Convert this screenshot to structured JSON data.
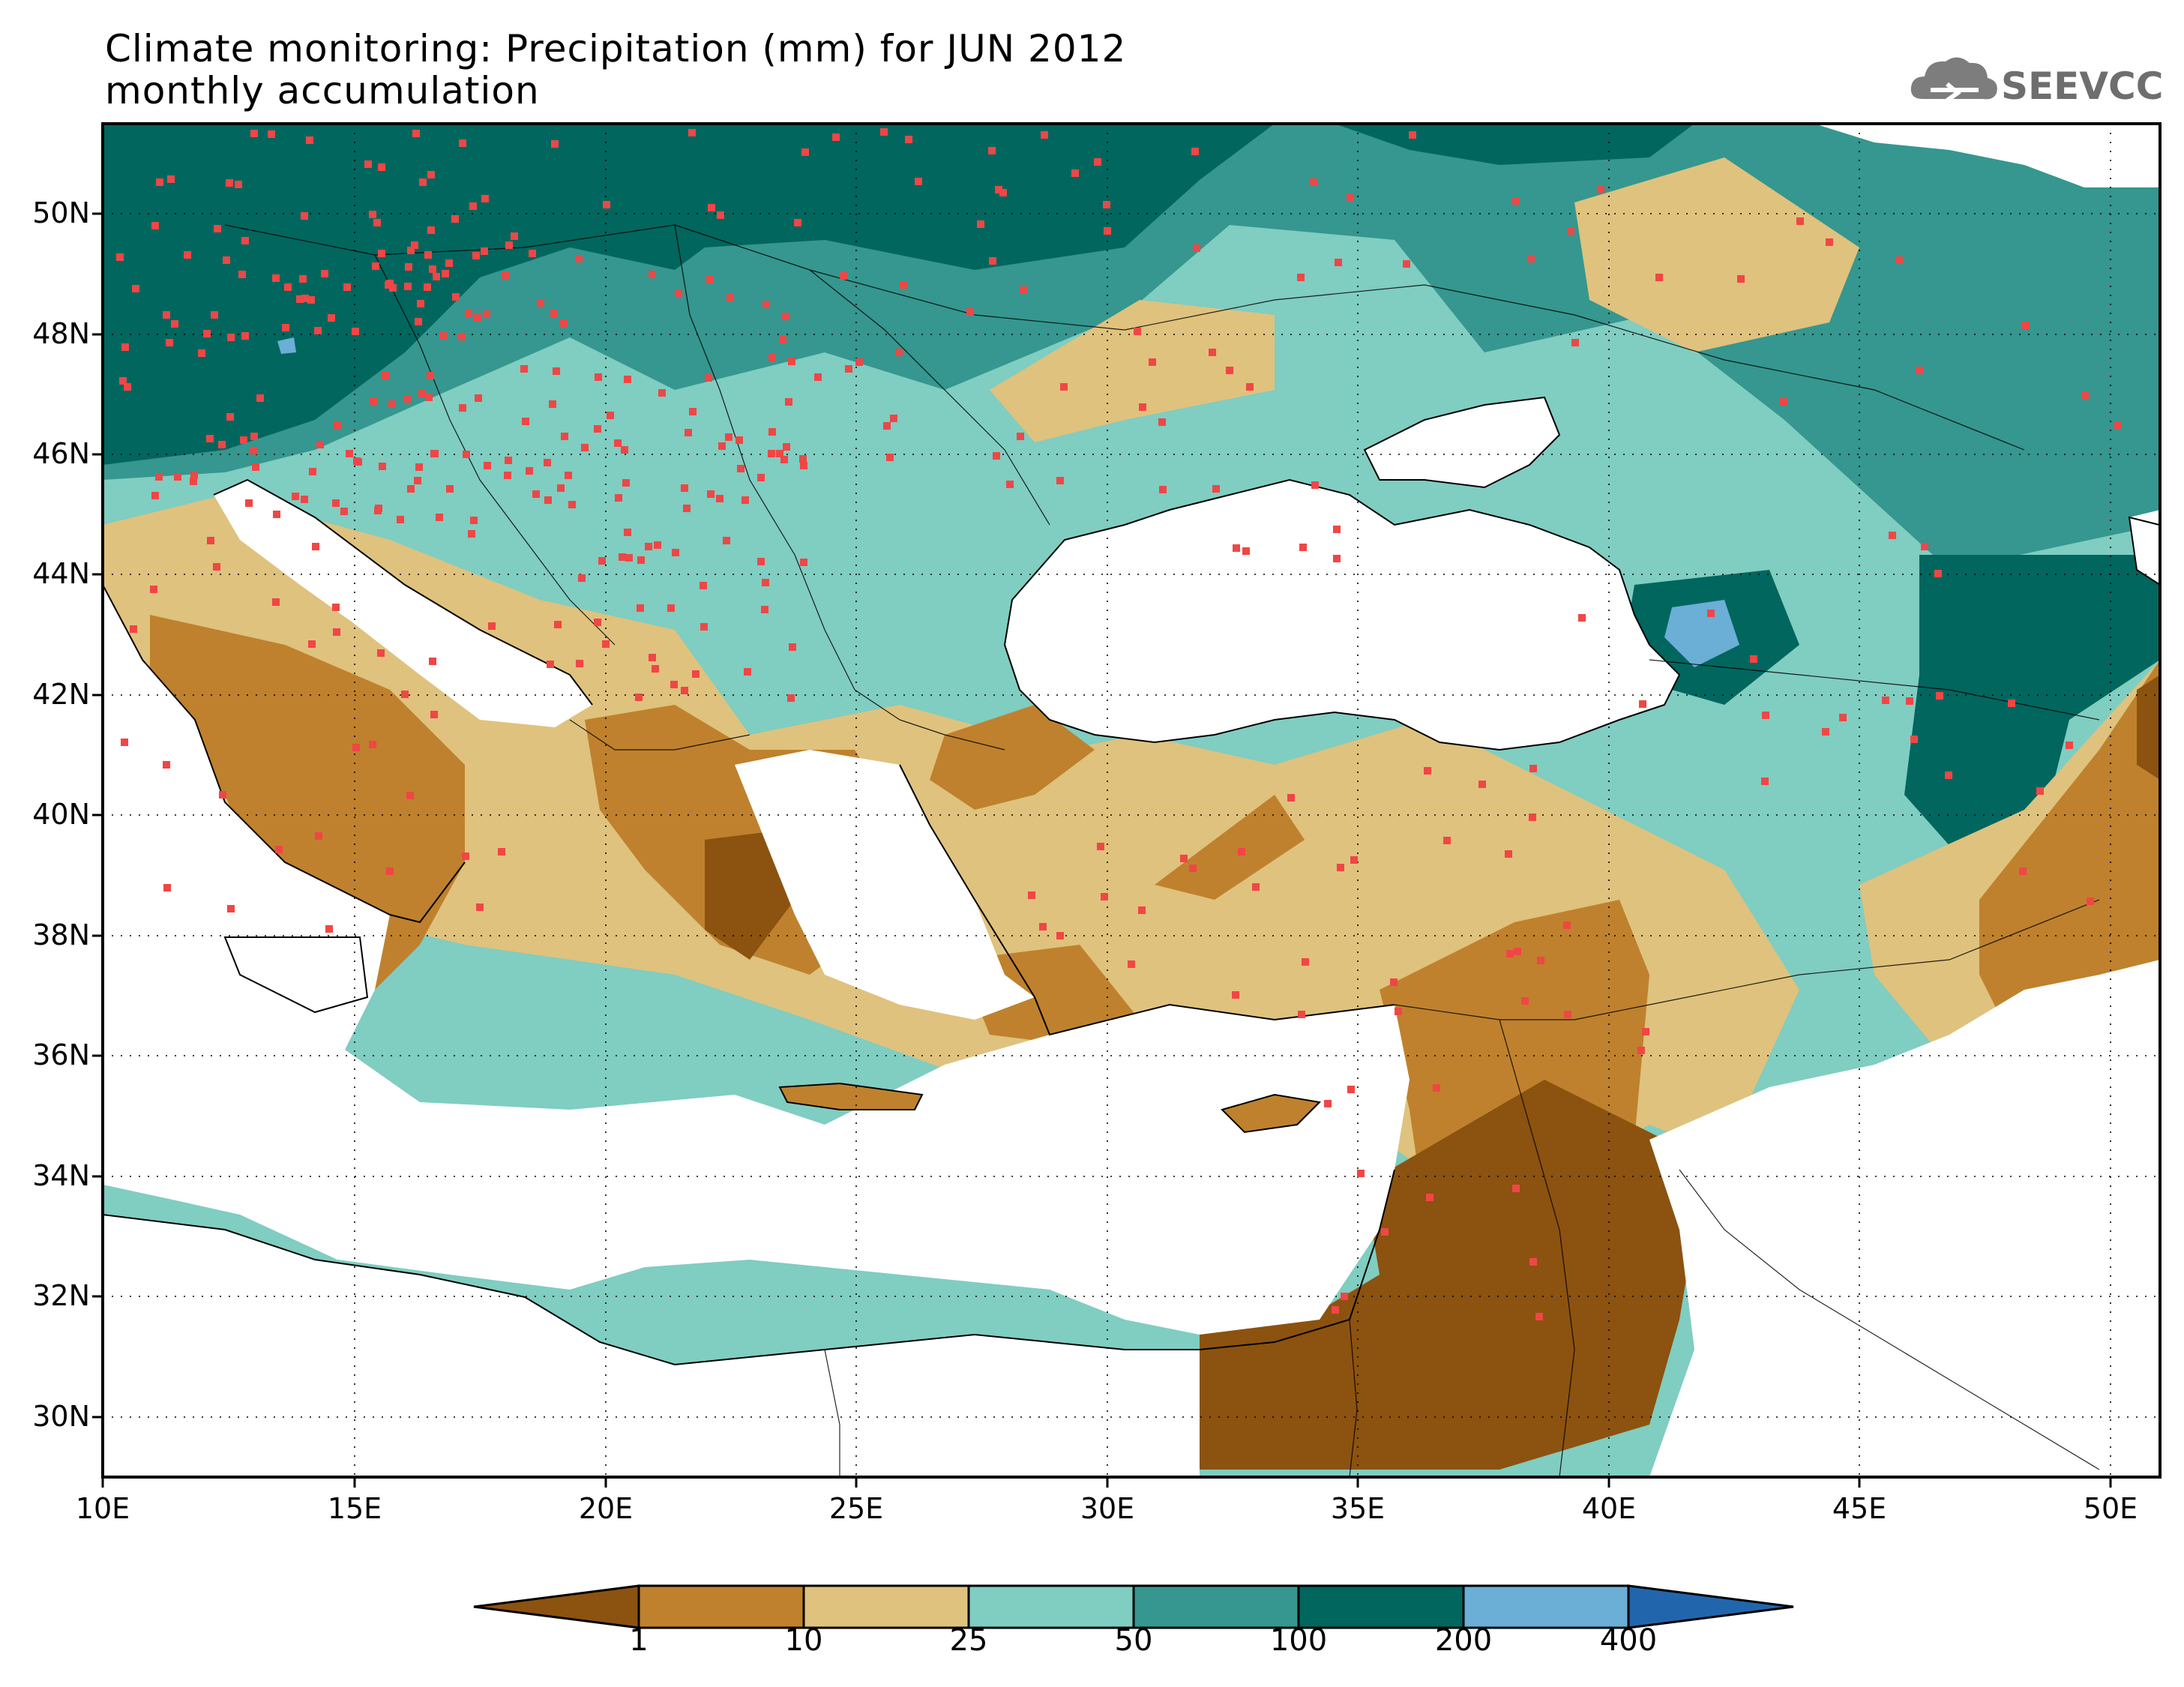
{
  "title": {
    "line1": "Climate monitoring: Precipitation (mm) for JUN 2012",
    "line2": "monthly accumulation"
  },
  "logo": {
    "text": "SEEVCCC",
    "icon": "cloud-icon"
  },
  "map": {
    "lon_range": [
      10,
      51
    ],
    "lat_range": [
      29,
      51.5
    ],
    "lat_ticks": [
      "30N",
      "32N",
      "34N",
      "36N",
      "38N",
      "40N",
      "42N",
      "44N",
      "46N",
      "48N",
      "50N"
    ],
    "lon_ticks": [
      "10E",
      "15E",
      "20E",
      "25E",
      "30E",
      "35E",
      "40E",
      "45E",
      "50E"
    ],
    "station_marker_color": "#f04646"
  },
  "colorbar": {
    "levels": [
      "1",
      "10",
      "25",
      "50",
      "100",
      "200",
      "400"
    ],
    "colors": [
      "#8c520f",
      "#bf812d",
      "#dfc27d",
      "#80cdc1",
      "#35978f",
      "#01665e",
      "#6baed6",
      "#2166ac"
    ]
  }
}
